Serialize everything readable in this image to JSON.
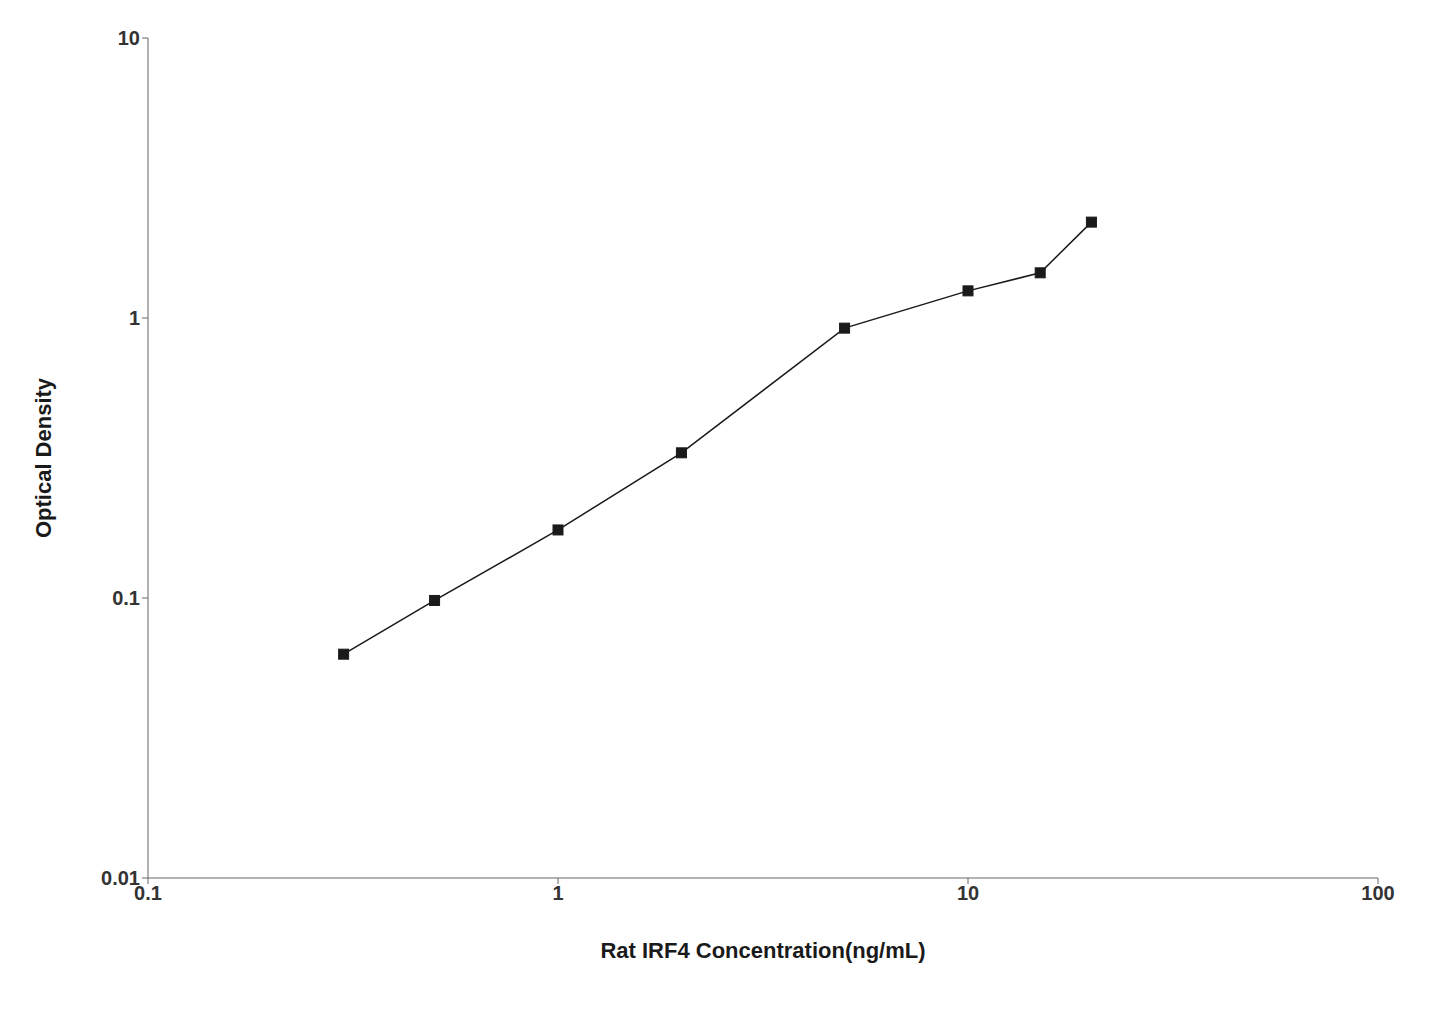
{
  "chart_data": {
    "type": "line",
    "x": [
      0.3,
      0.5,
      1.0,
      2.0,
      5.0,
      10.0,
      15.0,
      20.0
    ],
    "values": [
      0.063,
      0.098,
      0.175,
      0.33,
      0.92,
      1.25,
      1.45,
      2.2
    ],
    "xlabel": "Rat IRF4 Concentration(ng/mL)",
    "ylabel": "Optical Density",
    "xlim": [
      0.1,
      100
    ],
    "ylim": [
      0.01,
      10
    ],
    "xticks": [
      0.1,
      1,
      10,
      100
    ],
    "yticks": [
      0.01,
      0.1,
      1,
      10
    ],
    "log": true,
    "color": "#1a1a1a",
    "marker": "square",
    "grid": false
  }
}
